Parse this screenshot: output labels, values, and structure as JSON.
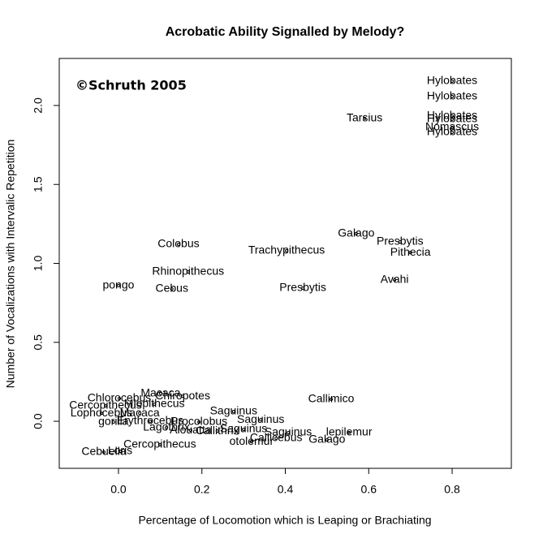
{
  "chart_data": {
    "type": "scatter",
    "title": "Acrobatic Ability Signalled by Melody?",
    "annotation": "©Schruth 2005",
    "xlabel": "Percentage of Locomotion which is Leaping or Brachiating",
    "ylabel": "Number of Vocalizations with Intervalic Repetition",
    "xlim": [
      -0.142,
      0.942
    ],
    "ylim": [
      -0.298,
      2.298
    ],
    "xticks": [
      {
        "value": 0,
        "label": "0.0"
      },
      0.2,
      0.4,
      0.6,
      0.8
    ],
    "yticks": [
      {
        "value": 0,
        "label": "0.0"
      },
      0.5,
      {
        "value": 1,
        "label": "1.0"
      },
      1.5,
      {
        "value": 2,
        "label": "2.0"
      }
    ],
    "color": "#000000",
    "labels": [
      "Hylobates",
      "Hylobates",
      "Hylobates",
      "Hylobates",
      "Nomascus",
      "Hylobates",
      "Tarsius",
      "Galago",
      "Presbytis",
      "Pithecia",
      "Trachypithecus",
      "Colobus",
      "Rhinopithecus",
      "Avahi",
      "Presbytis",
      "pongo",
      "Cebus",
      "Callimico",
      "Macaca",
      "Chlorocebus",
      "Cercopithecus",
      "Lophocebus",
      "Macaca",
      "Chiropotes",
      "Miopithecus",
      "gorilla",
      "Erythrocebus",
      "Lagothrix",
      "Procolobus",
      "Alouatta",
      "Callithrix",
      "Saguinus",
      "Saguinus",
      "Saguinus",
      "Saguinus",
      "Callicebus",
      "otolemur",
      "Galago",
      "lepilemur",
      "Cercopithecus",
      "Cebuella",
      "Loris"
    ],
    "x": [
      0.8,
      0.8,
      0.8,
      0.8,
      0.8,
      0.8,
      0.59,
      0.57,
      0.675,
      0.7,
      0.403,
      0.144,
      0.167,
      0.662,
      0.442,
      0.0,
      0.128,
      0.51,
      0.101,
      0.002,
      -0.031,
      -0.041,
      0.051,
      0.154,
      0.086,
      -0.012,
      0.076,
      0.115,
      0.193,
      0.173,
      0.237,
      0.276,
      0.341,
      0.3,
      0.407,
      0.378,
      0.319,
      0.5,
      0.553,
      0.099,
      -0.035,
      0.004
    ],
    "y": [
      2.154,
      2.057,
      1.933,
      1.913,
      1.861,
      1.83,
      1.918,
      1.188,
      1.136,
      1.069,
      1.08,
      1.121,
      0.946,
      0.895,
      0.843,
      0.859,
      0.838,
      0.139,
      0.175,
      0.144,
      0.098,
      0.051,
      0.051,
      0.159,
      0.108,
      -0.005,
      0.0,
      -0.041,
      -0.005,
      -0.057,
      -0.062,
      0.062,
      0.01,
      -0.051,
      -0.072,
      -0.108,
      -0.129,
      -0.118,
      -0.072,
      -0.149,
      -0.195,
      -0.19
    ]
  }
}
